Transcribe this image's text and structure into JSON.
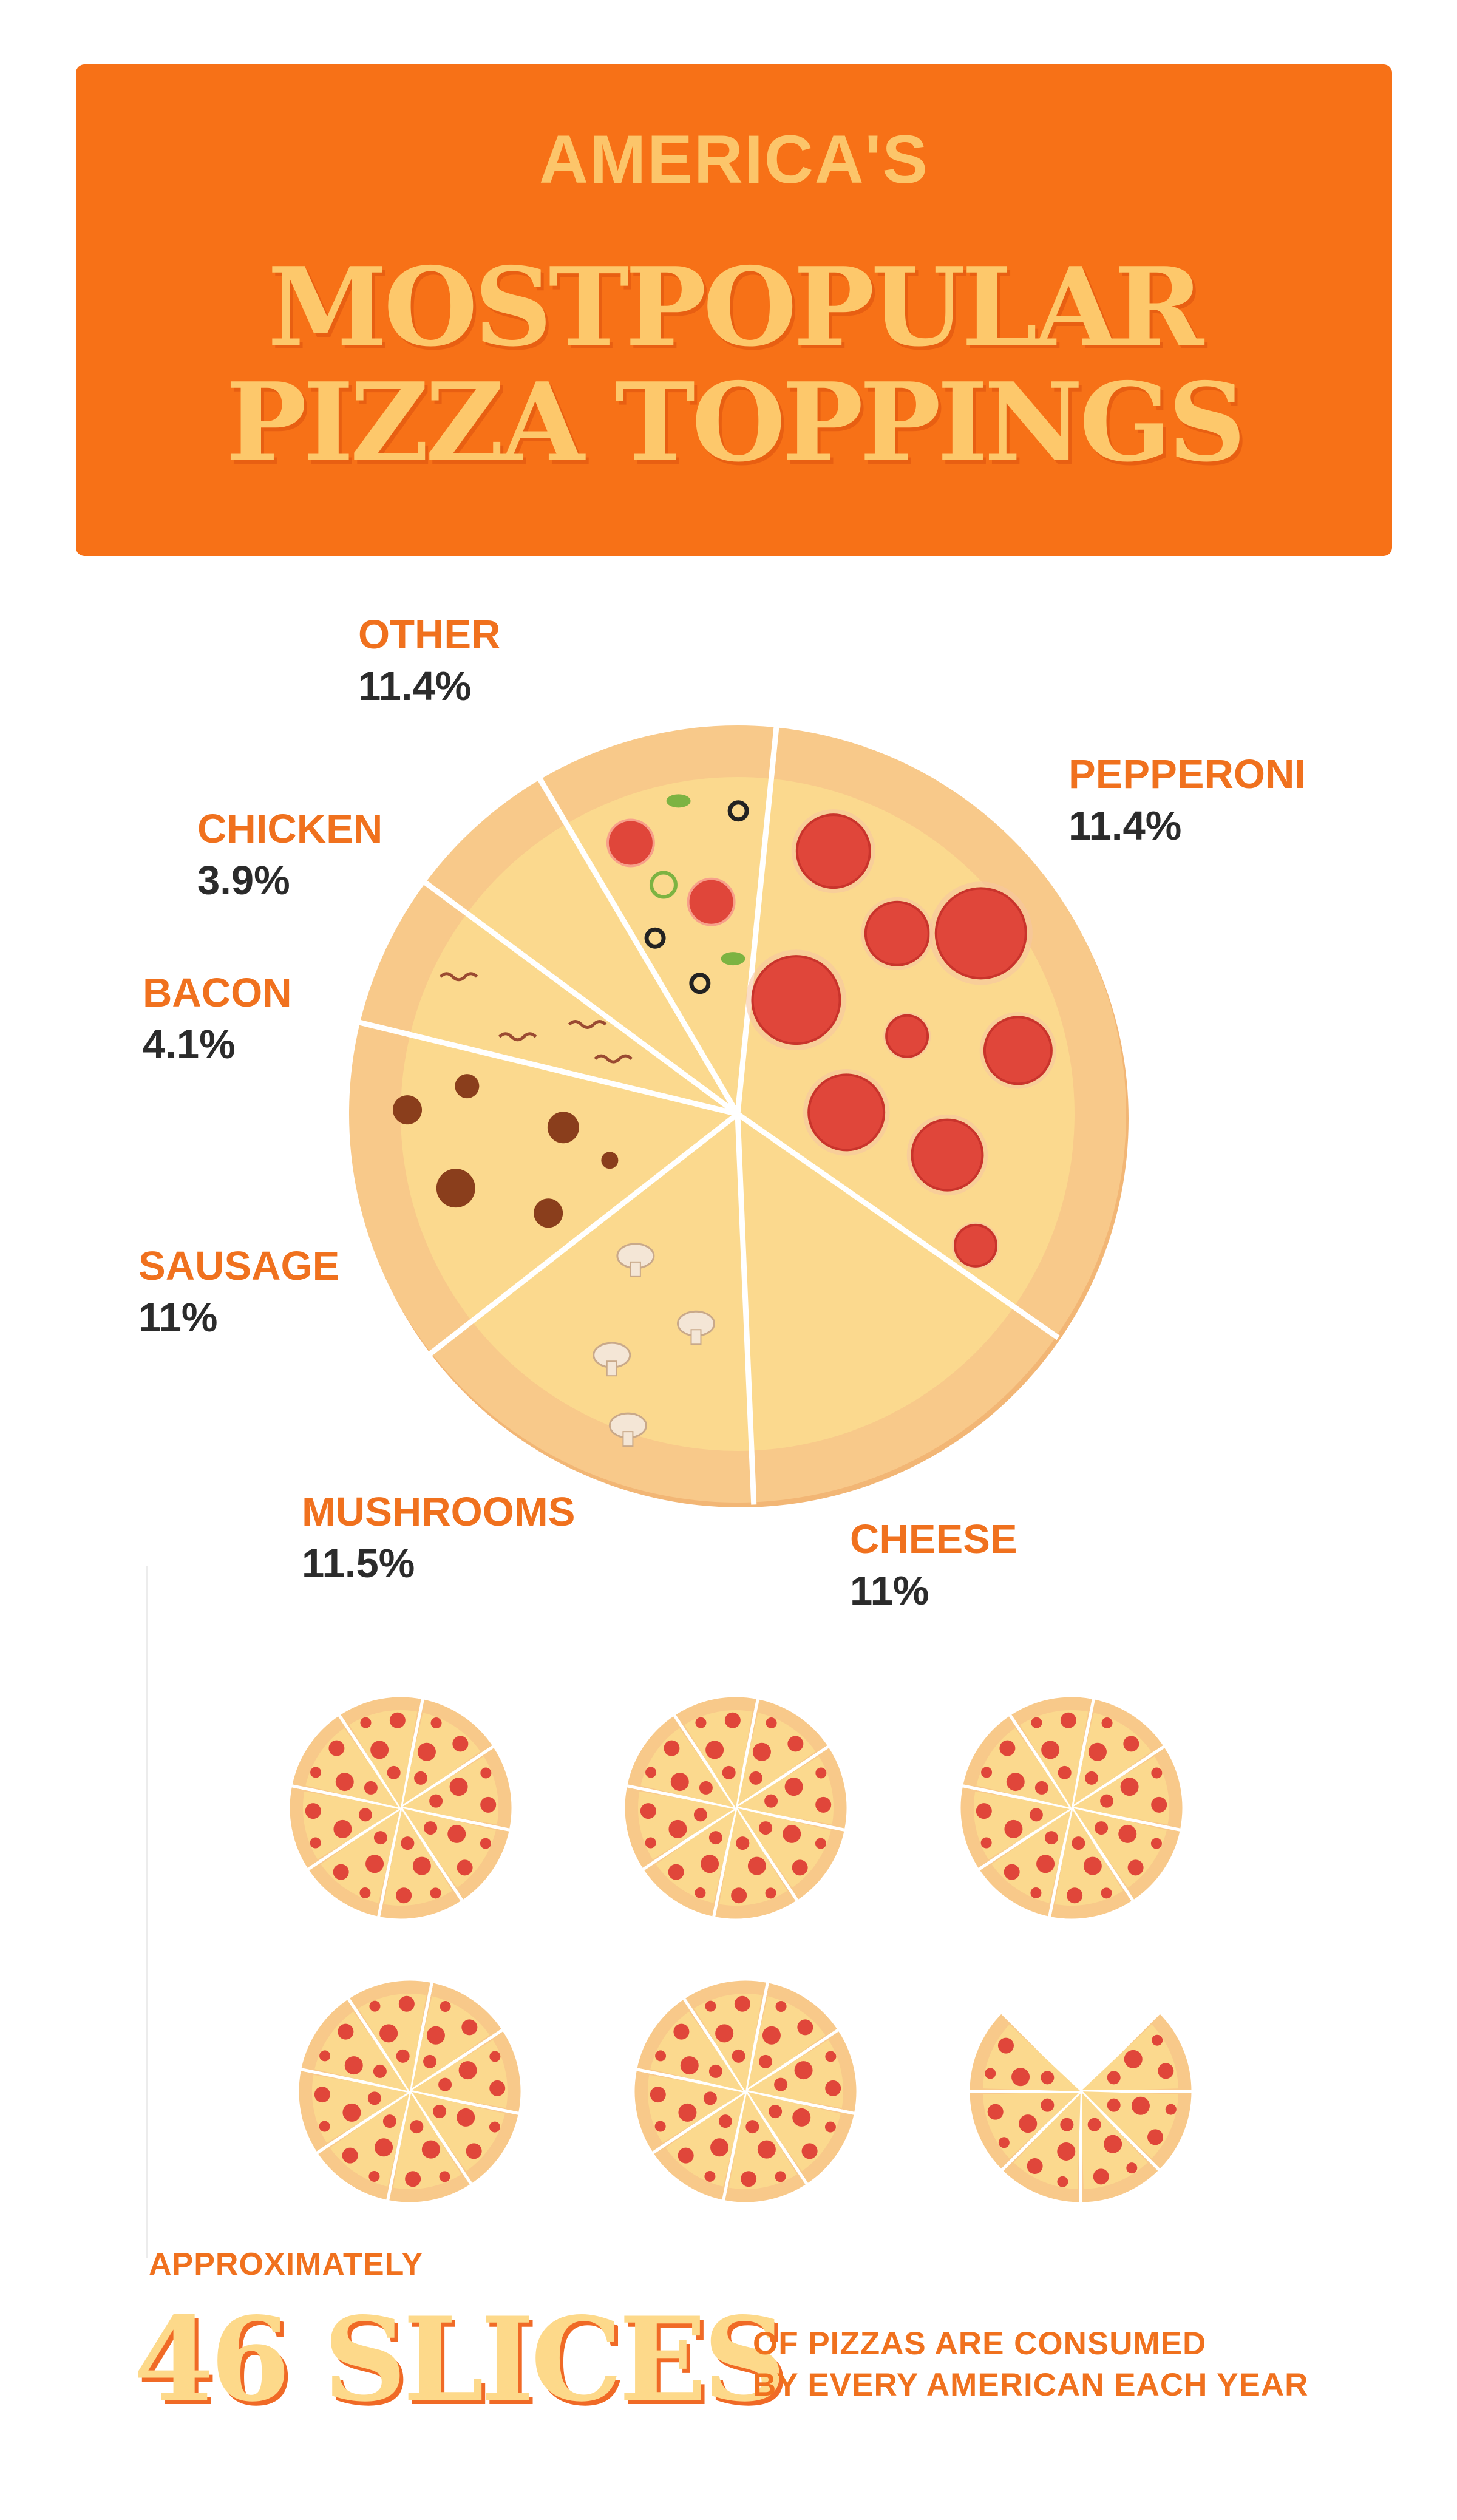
{
  "header": {
    "kicker": "AMERICA'S",
    "title_line1": "MOSTPOPULAR",
    "title_line2": "PIZZA TOPPINGS"
  },
  "colors": {
    "banner": "#f77117",
    "accent_text": "#f0711e",
    "title_text": "#fdc86b",
    "crust": "#f8c98a",
    "cheese": "#fbd98e",
    "pepperoni": "#e0463a"
  },
  "chart_data": {
    "type": "pie",
    "title": "",
    "slices": [
      {
        "label": "PEPPERONI",
        "value_text": "11.4%",
        "value": 11.4,
        "topping": "pepperoni"
      },
      {
        "label": "CHEESE",
        "value_text": "11%",
        "value": 11,
        "topping": "cheese"
      },
      {
        "label": "MUSHROOMS",
        "value_text": "11.5%",
        "value": 11.5,
        "topping": "mushrooms"
      },
      {
        "label": "SAUSAGE",
        "value_text": "11%",
        "value": 11,
        "topping": "sausage"
      },
      {
        "label": "BACON",
        "value_text": "4.1%",
        "value": 4.1,
        "topping": "bacon"
      },
      {
        "label": "CHICKEN",
        "value_text": "3.9%",
        "value": 3.9,
        "topping": "chicken"
      },
      {
        "label": "OTHER",
        "value_text": "11.4%",
        "value": 11.4,
        "topping": "other"
      }
    ]
  },
  "consumption": {
    "whole_pizzas": 5,
    "slices_per_pizza": 8,
    "partial_pizza_slices": 6,
    "approx_label": "APPROXIMATELY",
    "big_number": "46 SLICES",
    "caption_line1": "OF PIZZAS ARE CONSUMED",
    "caption_line2": "BY EVERY AMERICAN EACH YEAR"
  }
}
